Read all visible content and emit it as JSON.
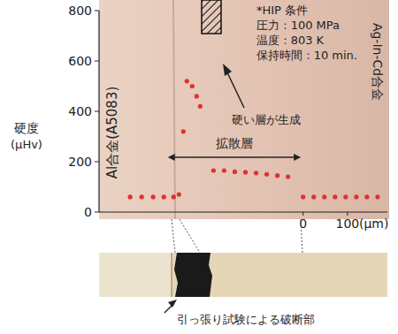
{
  "chart_data": {
    "type": "scatter",
    "y_label": "硬度",
    "y_unit": "(μHv)",
    "x_label": "(μm)",
    "xlim": [
      -460,
      190
    ],
    "xticks": [
      0,
      100
    ],
    "ylim": [
      0,
      800
    ],
    "yticks": [
      0,
      200,
      400,
      600,
      800
    ],
    "tick_labels": true,
    "series": [
      {
        "color": "#e0312f",
        "marker": "circle",
        "x": [
          -390,
          -364,
          -338,
          -314,
          -292,
          -280,
          -270,
          -262,
          -250,
          -240,
          -232,
          -202,
          -178,
          -154,
          -130,
          -106,
          -82,
          -58,
          -34,
          0,
          24,
          48,
          72,
          96,
          120,
          144,
          168
        ],
        "values": [
          60,
          60,
          60,
          60,
          60,
          70,
          320,
          520,
          500,
          460,
          420,
          165,
          165,
          160,
          158,
          155,
          150,
          145,
          140,
          60,
          60,
          60,
          60,
          60,
          60,
          60,
          60
        ]
      }
    ],
    "annotations": {
      "conditions": [
        "*HIP 条件",
        "圧力 : 100 MPa",
        "温度 : 803 K",
        "保持時間 : 10 min."
      ],
      "hard_layer": "硬い層が生成",
      "diffusion_layer": {
        "text": "拡散層",
        "from": -305,
        "to": -5
      },
      "left_material": "Al合金(A5083)",
      "right_material": "Ag-In-Cd合金",
      "fracture": "引っ張り試験による破断部"
    }
  }
}
